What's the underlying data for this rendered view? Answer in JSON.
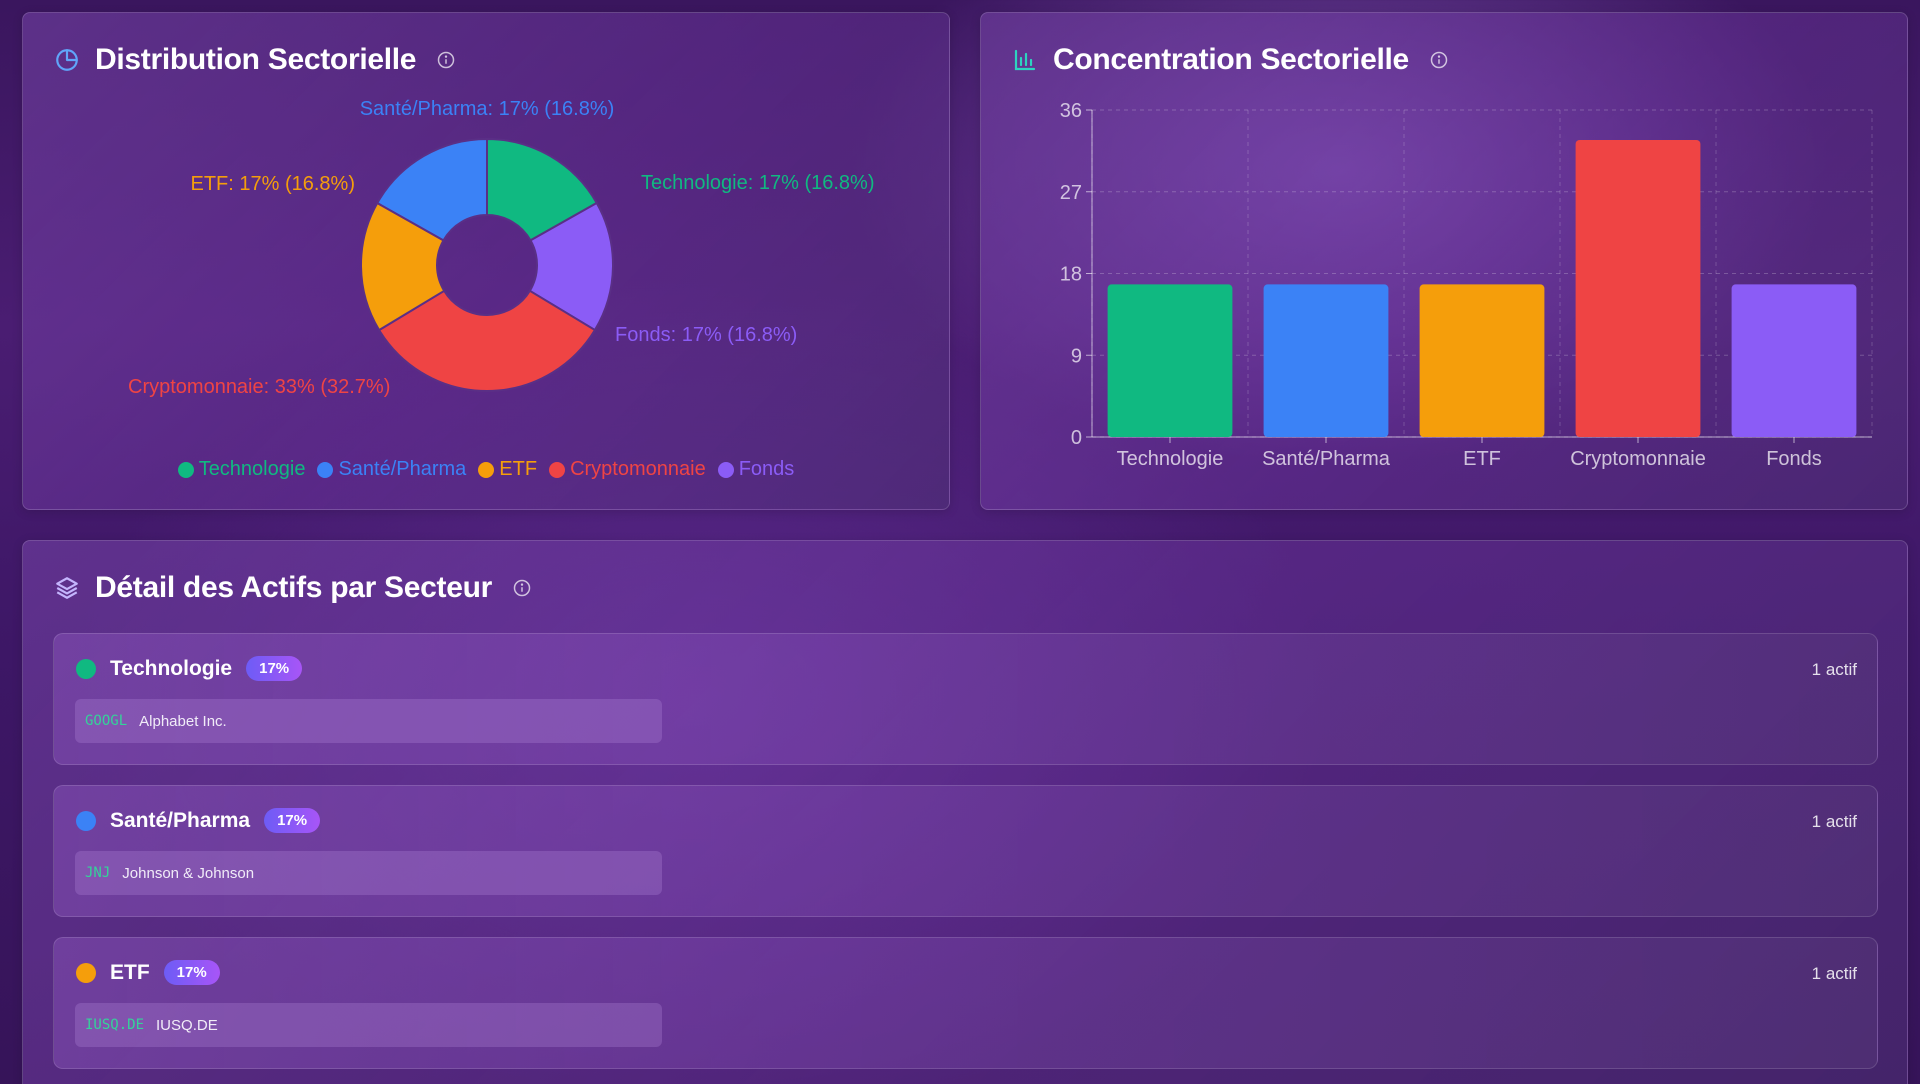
{
  "colors": {
    "technologie": "#10b981",
    "sante": "#3b82f6",
    "etf": "#f59e0b",
    "crypto": "#ef4444",
    "fonds": "#8b5cf6",
    "badge_start": "#6d5cf6",
    "badge_end": "#a855f7"
  },
  "distribution": {
    "title": "Distribution Sectorielle",
    "icon": "pie-chart-icon",
    "info_icon": "info-icon",
    "slice_labels": [
      "Technologie: 17% (16.8%)",
      "Fonds: 17% (16.8%)",
      "Cryptomonnaie: 33% (32.7%)",
      "ETF: 17% (16.8%)",
      "Santé/Pharma: 17% (16.8%)"
    ],
    "legend": [
      "Technologie",
      "Santé/Pharma",
      "ETF",
      "Cryptomonnaie",
      "Fonds"
    ]
  },
  "concentration": {
    "title": "Concentration Sectorielle",
    "icon": "bar-chart-icon",
    "info_icon": "info-icon"
  },
  "chart_data": [
    {
      "type": "pie",
      "title": "Distribution Sectorielle",
      "categories": [
        "Technologie",
        "Fonds",
        "Cryptomonnaie",
        "ETF",
        "Santé/Pharma"
      ],
      "values": [
        16.8,
        16.8,
        32.7,
        16.8,
        16.8
      ],
      "colors": [
        "#10b981",
        "#8b5cf6",
        "#ef4444",
        "#f59e0b",
        "#3b82f6"
      ],
      "donut": true,
      "legend": "bottom"
    },
    {
      "type": "bar",
      "title": "Concentration Sectorielle",
      "categories": [
        "Technologie",
        "Santé/Pharma",
        "ETF",
        "Cryptomonnaie",
        "Fonds"
      ],
      "values": [
        16.8,
        16.8,
        16.8,
        32.7,
        16.8
      ],
      "colors": [
        "#10b981",
        "#3b82f6",
        "#f59e0b",
        "#ef4444",
        "#8b5cf6"
      ],
      "yticks": [
        "0",
        "9",
        "18",
        "27",
        "36"
      ],
      "ylim": [
        0,
        36
      ],
      "grid": true
    }
  ],
  "detail": {
    "title": "Détail des Actifs par Secteur",
    "icon": "layers-icon",
    "info_icon": "info-icon",
    "sectors": [
      {
        "name": "Technologie",
        "badge": "17%",
        "count": "1 actif",
        "color": "#10b981",
        "asset": {
          "ticker": "GOOGL",
          "name": "Alphabet Inc."
        }
      },
      {
        "name": "Santé/Pharma",
        "badge": "17%",
        "count": "1 actif",
        "color": "#3b82f6",
        "asset": {
          "ticker": "JNJ",
          "name": "Johnson & Johnson"
        }
      },
      {
        "name": "ETF",
        "badge": "17%",
        "count": "1 actif",
        "color": "#f59e0b",
        "asset": {
          "ticker": "IUSQ.DE",
          "name": "IUSQ.DE"
        }
      }
    ]
  }
}
